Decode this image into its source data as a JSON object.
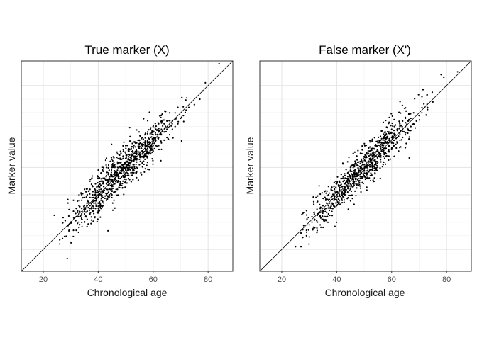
{
  "chart_data": [
    {
      "type": "scatter",
      "title": "True marker (X)",
      "xlabel": "Chronological age",
      "ylabel": "Marker value",
      "xlim": [
        12,
        89
      ],
      "ylim": [
        12,
        89
      ],
      "x_ticks": [
        20,
        40,
        60,
        80
      ],
      "grid": true,
      "reference_line": "y = x",
      "noise_sd": 5.2,
      "points": [
        [
          24,
          32.5
        ],
        [
          26,
          22
        ],
        [
          26,
          23.5
        ],
        [
          27,
          24
        ],
        [
          28,
          30.5
        ],
        [
          29,
          37
        ],
        [
          30,
          30
        ],
        [
          31,
          27
        ],
        [
          31,
          34
        ],
        [
          31,
          38
        ],
        [
          32,
          27
        ],
        [
          32,
          32
        ],
        [
          32,
          35
        ],
        [
          33,
          28
        ],
        [
          33,
          30
        ],
        [
          33,
          33
        ],
        [
          33,
          36
        ],
        [
          34,
          31
        ],
        [
          34,
          33
        ],
        [
          34,
          35
        ],
        [
          34,
          38
        ],
        [
          34,
          40
        ],
        [
          35,
          30
        ],
        [
          35,
          33
        ],
        [
          35,
          34
        ],
        [
          35,
          36
        ],
        [
          35,
          39
        ],
        [
          35,
          42
        ],
        [
          36,
          31
        ],
        [
          36,
          34
        ],
        [
          36,
          36
        ],
        [
          36,
          38
        ],
        [
          36,
          40
        ],
        [
          37,
          33
        ],
        [
          37,
          35
        ],
        [
          37,
          37
        ],
        [
          37,
          39
        ],
        [
          37,
          42
        ],
        [
          37,
          45
        ],
        [
          38,
          34
        ],
        [
          38,
          36
        ],
        [
          38,
          38
        ],
        [
          38,
          40
        ],
        [
          38,
          43
        ],
        [
          39,
          35
        ],
        [
          39,
          37
        ],
        [
          39,
          39
        ],
        [
          39,
          41
        ],
        [
          39,
          44
        ],
        [
          40,
          34
        ],
        [
          40,
          37
        ],
        [
          40,
          39
        ],
        [
          40,
          41
        ],
        [
          40,
          43
        ],
        [
          40,
          46
        ],
        [
          41,
          35
        ],
        [
          41,
          38
        ],
        [
          41,
          40
        ],
        [
          41,
          42
        ],
        [
          41,
          45
        ],
        [
          41,
          48
        ],
        [
          42,
          37
        ],
        [
          42,
          39
        ],
        [
          42,
          41
        ],
        [
          42,
          43
        ],
        [
          42,
          46
        ],
        [
          43,
          38
        ],
        [
          43,
          40
        ],
        [
          43,
          42
        ],
        [
          43,
          44
        ],
        [
          43,
          47
        ],
        [
          43,
          50
        ],
        [
          44,
          39
        ],
        [
          44,
          42
        ],
        [
          44,
          44
        ],
        [
          44,
          46
        ],
        [
          44,
          49
        ],
        [
          45,
          40
        ],
        [
          45,
          43
        ],
        [
          45,
          45
        ],
        [
          45,
          47
        ],
        [
          45,
          50
        ],
        [
          45,
          53
        ],
        [
          46,
          41
        ],
        [
          46,
          44
        ],
        [
          46,
          46
        ],
        [
          46,
          48
        ],
        [
          46,
          51
        ],
        [
          47,
          42
        ],
        [
          47,
          45
        ],
        [
          47,
          47
        ],
        [
          47,
          49
        ],
        [
          47,
          52
        ],
        [
          47,
          55
        ],
        [
          48,
          44
        ],
        [
          48,
          46
        ],
        [
          48,
          48
        ],
        [
          48,
          50
        ],
        [
          48,
          53
        ],
        [
          49,
          45
        ],
        [
          49,
          47
        ],
        [
          49,
          49
        ],
        [
          49,
          51
        ],
        [
          49,
          54
        ],
        [
          50,
          45
        ],
        [
          50,
          48
        ],
        [
          50,
          50
        ],
        [
          50,
          52
        ],
        [
          50,
          55
        ],
        [
          50,
          58
        ],
        [
          51,
          46
        ],
        [
          51,
          49
        ],
        [
          51,
          51
        ],
        [
          51,
          53
        ],
        [
          51,
          56
        ],
        [
          52,
          47
        ],
        [
          52,
          50
        ],
        [
          52,
          52
        ],
        [
          52,
          54
        ],
        [
          52,
          57
        ],
        [
          53,
          49
        ],
        [
          53,
          51
        ],
        [
          53,
          53
        ],
        [
          53,
          55
        ],
        [
          53,
          58
        ],
        [
          54,
          50
        ],
        [
          54,
          52
        ],
        [
          54,
          54
        ],
        [
          54,
          56
        ],
        [
          54,
          59
        ],
        [
          55,
          51
        ],
        [
          55,
          53
        ],
        [
          55,
          55
        ],
        [
          55,
          57
        ],
        [
          55,
          60
        ],
        [
          56,
          52
        ],
        [
          56,
          54
        ],
        [
          56,
          56
        ],
        [
          56,
          58
        ],
        [
          56,
          61
        ],
        [
          57,
          53
        ],
        [
          57,
          55
        ],
        [
          57,
          57
        ],
        [
          57,
          59
        ],
        [
          57,
          62
        ],
        [
          58,
          54
        ],
        [
          58,
          56
        ],
        [
          58,
          58
        ],
        [
          58,
          60
        ],
        [
          58,
          63
        ],
        [
          59,
          55
        ],
        [
          59,
          57
        ],
        [
          59,
          59
        ],
        [
          59,
          61
        ],
        [
          59,
          64
        ],
        [
          60,
          56
        ],
        [
          60,
          58
        ],
        [
          60,
          60
        ],
        [
          60,
          62
        ],
        [
          60,
          65
        ],
        [
          61,
          58
        ],
        [
          61,
          60
        ],
        [
          61,
          62
        ],
        [
          61,
          64
        ],
        [
          62,
          58
        ],
        [
          62,
          61
        ],
        [
          62,
          63
        ],
        [
          62,
          66
        ],
        [
          63,
          59
        ],
        [
          63,
          62
        ],
        [
          63,
          64
        ],
        [
          63,
          67
        ],
        [
          64,
          60
        ],
        [
          64,
          63
        ],
        [
          64,
          66
        ],
        [
          65,
          61
        ],
        [
          65,
          64
        ],
        [
          65,
          67
        ],
        [
          66,
          62
        ],
        [
          66,
          65
        ],
        [
          66,
          70
        ],
        [
          67,
          64
        ],
        [
          67,
          67
        ],
        [
          68,
          65
        ],
        [
          68,
          70
        ],
        [
          69,
          66
        ],
        [
          69,
          72
        ],
        [
          70,
          68
        ],
        [
          71,
          69
        ],
        [
          72,
          71
        ],
        [
          73,
          72
        ],
        [
          75,
          73
        ],
        [
          77,
          75
        ],
        [
          78,
          78
        ],
        [
          79,
          81
        ],
        [
          84,
          88
        ]
      ]
    },
    {
      "type": "scatter",
      "title": "False marker (X')",
      "xlabel": "Chronological age",
      "ylabel": "Marker value",
      "xlim": [
        12,
        89
      ],
      "ylim": [
        12,
        89
      ],
      "x_ticks": [
        20,
        40,
        60,
        80
      ],
      "grid": true,
      "reference_line": "y = x",
      "noise_sd": 4.6,
      "points": [
        [
          25,
          21
        ],
        [
          27,
          21
        ],
        [
          27,
          26
        ],
        [
          29,
          27
        ],
        [
          29,
          25
        ],
        [
          30,
          29
        ],
        [
          31,
          30
        ],
        [
          31,
          32
        ],
        [
          32,
          28
        ],
        [
          32,
          31
        ],
        [
          33,
          30
        ],
        [
          33,
          33
        ],
        [
          34,
          29
        ],
        [
          34,
          32
        ],
        [
          34,
          35
        ],
        [
          35,
          31
        ],
        [
          35,
          34
        ],
        [
          35,
          36
        ],
        [
          36,
          32
        ],
        [
          36,
          35
        ],
        [
          36,
          38
        ],
        [
          37,
          33
        ],
        [
          37,
          36
        ],
        [
          37,
          38
        ],
        [
          37,
          40
        ],
        [
          38,
          35
        ],
        [
          38,
          37
        ],
        [
          38,
          39
        ],
        [
          38,
          42
        ],
        [
          39,
          36
        ],
        [
          39,
          38
        ],
        [
          39,
          40
        ],
        [
          39,
          43
        ],
        [
          40,
          36
        ],
        [
          40,
          39
        ],
        [
          40,
          41
        ],
        [
          40,
          44
        ],
        [
          41,
          38
        ],
        [
          41,
          40
        ],
        [
          41,
          42
        ],
        [
          41,
          45
        ],
        [
          42,
          38
        ],
        [
          42,
          41
        ],
        [
          42,
          43
        ],
        [
          42,
          46
        ],
        [
          43,
          40
        ],
        [
          43,
          42
        ],
        [
          43,
          44
        ],
        [
          43,
          47
        ],
        [
          44,
          41
        ],
        [
          44,
          43
        ],
        [
          44,
          45
        ],
        [
          44,
          48
        ],
        [
          45,
          42
        ],
        [
          45,
          44
        ],
        [
          45,
          46
        ],
        [
          45,
          49
        ],
        [
          46,
          43
        ],
        [
          46,
          45
        ],
        [
          46,
          47
        ],
        [
          46,
          50
        ],
        [
          47,
          44
        ],
        [
          47,
          46
        ],
        [
          47,
          48
        ],
        [
          47,
          51
        ],
        [
          48,
          45
        ],
        [
          48,
          47
        ],
        [
          48,
          49
        ],
        [
          48,
          52
        ],
        [
          49,
          46
        ],
        [
          49,
          48
        ],
        [
          49,
          50
        ],
        [
          49,
          53
        ],
        [
          50,
          47
        ],
        [
          50,
          49
        ],
        [
          50,
          51
        ],
        [
          50,
          54
        ],
        [
          51,
          48
        ],
        [
          51,
          50
        ],
        [
          51,
          52
        ],
        [
          51,
          55
        ],
        [
          52,
          49
        ],
        [
          52,
          51
        ],
        [
          52,
          53
        ],
        [
          52,
          56
        ],
        [
          53,
          50
        ],
        [
          53,
          52
        ],
        [
          53,
          54
        ],
        [
          53,
          57
        ],
        [
          54,
          51
        ],
        [
          54,
          53
        ],
        [
          54,
          55
        ],
        [
          54,
          58
        ],
        [
          55,
          52
        ],
        [
          55,
          54
        ],
        [
          55,
          56
        ],
        [
          55,
          59
        ],
        [
          56,
          53
        ],
        [
          56,
          55
        ],
        [
          56,
          57
        ],
        [
          56,
          60
        ],
        [
          57,
          54
        ],
        [
          57,
          56
        ],
        [
          57,
          58
        ],
        [
          57,
          61
        ],
        [
          58,
          55
        ],
        [
          58,
          57
        ],
        [
          58,
          59
        ],
        [
          58,
          62
        ],
        [
          59,
          56
        ],
        [
          59,
          58
        ],
        [
          59,
          60
        ],
        [
          59,
          63
        ],
        [
          60,
          57
        ],
        [
          60,
          59
        ],
        [
          60,
          61
        ],
        [
          60,
          64
        ],
        [
          61,
          58
        ],
        [
          61,
          60
        ],
        [
          61,
          62
        ],
        [
          61,
          65
        ],
        [
          62,
          59
        ],
        [
          62,
          61
        ],
        [
          62,
          64
        ],
        [
          63,
          60
        ],
        [
          63,
          62
        ],
        [
          63,
          65
        ],
        [
          64,
          61
        ],
        [
          64,
          64
        ],
        [
          64,
          67
        ],
        [
          65,
          62
        ],
        [
          65,
          65
        ],
        [
          65,
          68
        ],
        [
          66,
          64
        ],
        [
          66,
          67
        ],
        [
          67,
          65
        ],
        [
          67,
          68
        ],
        [
          68,
          66
        ],
        [
          68,
          70
        ],
        [
          69,
          67
        ],
        [
          70,
          69
        ],
        [
          71,
          70
        ],
        [
          72,
          72
        ],
        [
          73,
          72
        ],
        [
          75,
          74
        ],
        [
          78,
          84
        ],
        [
          79,
          83
        ],
        [
          84,
          85
        ]
      ]
    }
  ]
}
